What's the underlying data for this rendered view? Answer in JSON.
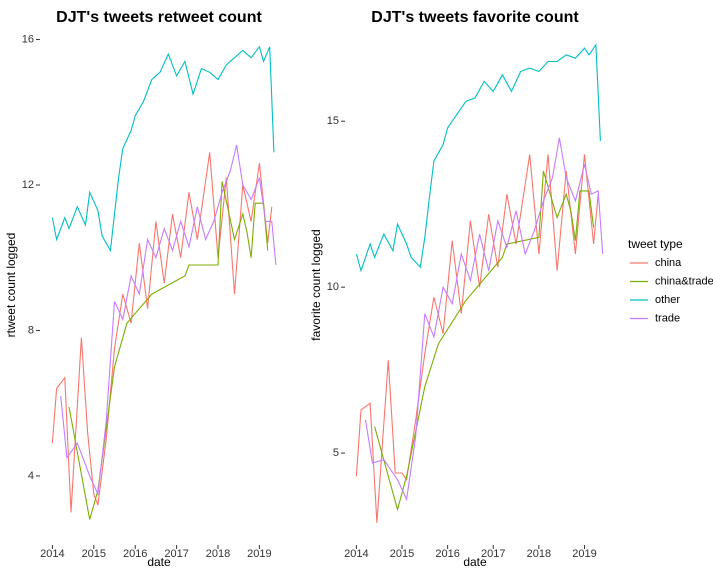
{
  "chart_data": [
    {
      "type": "line",
      "title": "DJT's tweets retweet count",
      "x_label": "date",
      "y_label": "rtweet count logged",
      "xlim": [
        2013.7,
        2019.45
      ],
      "ylim": [
        2.1,
        16.4
      ],
      "xticks": [
        2014,
        2015,
        2016,
        2017,
        2018,
        2019
      ],
      "yticks": [
        4,
        8,
        12,
        16
      ],
      "legend": {
        "title": "tweet type",
        "position": "right"
      },
      "series": [
        {
          "name": "china",
          "color": "#F8766D",
          "x": [
            2014.0,
            2014.1,
            2014.3,
            2014.45,
            2014.7,
            2014.85,
            2015.0,
            2015.1,
            2015.3,
            2015.5,
            2015.7,
            2015.9,
            2016.1,
            2016.3,
            2016.5,
            2016.7,
            2016.9,
            2017.1,
            2017.3,
            2017.5,
            2017.8,
            2018.0,
            2018.2,
            2018.4,
            2018.6,
            2018.8,
            2019.0,
            2019.2,
            2019.3
          ],
          "values": [
            4.9,
            6.4,
            6.7,
            3.0,
            7.8,
            5.2,
            3.5,
            3.2,
            5.0,
            7.5,
            9.0,
            8.2,
            10.4,
            8.6,
            11.0,
            9.3,
            11.2,
            10.0,
            11.8,
            10.5,
            12.9,
            10.0,
            12.2,
            9.0,
            12.0,
            11.0,
            12.6,
            10.4,
            11.4
          ]
        },
        {
          "name": "china&trade",
          "color": "#7CAE00",
          "x": [
            2014.4,
            2014.9,
            2015.1,
            2015.5,
            2015.8,
            2016.4,
            2017.2,
            2017.3,
            2018.0,
            2018.1,
            2018.4,
            2018.6,
            2018.7,
            2018.8,
            2018.9,
            2019.1,
            2019.2
          ],
          "values": [
            5.9,
            2.8,
            3.6,
            7.0,
            8.2,
            9.0,
            9.5,
            9.8,
            9.8,
            12.1,
            10.5,
            11.2,
            10.7,
            10.0,
            11.5,
            11.5,
            10.2
          ]
        },
        {
          "name": "other",
          "color": "#00BFC4",
          "x": [
            2014.0,
            2014.1,
            2014.3,
            2014.4,
            2014.6,
            2014.8,
            2014.9,
            2015.1,
            2015.2,
            2015.4,
            2015.5,
            2015.6,
            2015.7,
            2015.9,
            2016.0,
            2016.2,
            2016.4,
            2016.6,
            2016.8,
            2017.0,
            2017.2,
            2017.4,
            2017.6,
            2017.8,
            2018.0,
            2018.2,
            2018.4,
            2018.6,
            2018.8,
            2019.0,
            2019.1,
            2019.25,
            2019.35
          ],
          "values": [
            11.1,
            10.5,
            11.1,
            10.8,
            11.4,
            10.9,
            11.8,
            11.3,
            10.6,
            10.2,
            11.2,
            12.2,
            13.0,
            13.5,
            13.9,
            14.3,
            14.9,
            15.1,
            15.6,
            15.0,
            15.4,
            14.5,
            15.2,
            15.1,
            14.9,
            15.3,
            15.5,
            15.7,
            15.5,
            15.8,
            15.4,
            15.8,
            12.9
          ]
        },
        {
          "name": "trade",
          "color": "#C77CFF",
          "x": [
            2014.2,
            2014.35,
            2014.6,
            2014.9,
            2015.1,
            2015.3,
            2015.5,
            2015.7,
            2015.9,
            2016.1,
            2016.3,
            2016.5,
            2016.7,
            2016.9,
            2017.1,
            2017.3,
            2017.5,
            2017.7,
            2017.9,
            2018.1,
            2018.3,
            2018.45,
            2018.6,
            2018.8,
            2019.0,
            2019.15,
            2019.3,
            2019.4
          ],
          "values": [
            6.2,
            4.5,
            4.9,
            4.0,
            3.5,
            5.5,
            8.8,
            8.3,
            9.5,
            9.0,
            10.5,
            10.0,
            10.8,
            10.2,
            11.0,
            10.3,
            11.4,
            10.5,
            11.0,
            11.8,
            12.4,
            13.1,
            12.0,
            11.6,
            12.2,
            11.0,
            11.0,
            9.8
          ]
        }
      ]
    },
    {
      "type": "line",
      "title": "DJT's tweets favorite count",
      "x_label": "date",
      "y_label": "favorite count logged",
      "xlim": [
        2013.75,
        2019.45
      ],
      "ylim": [
        2.23,
        17.9
      ],
      "xticks": [
        2014,
        2015,
        2016,
        2017,
        2018,
        2019
      ],
      "yticks": [
        5,
        10,
        15
      ],
      "series": [
        {
          "color": "#F8766D",
          "x": [
            2014.0,
            2014.1,
            2014.3,
            2014.45,
            2014.7,
            2014.85,
            2015.0,
            2015.1,
            2015.3,
            2015.5,
            2015.7,
            2015.9,
            2016.1,
            2016.3,
            2016.5,
            2016.7,
            2016.9,
            2017.1,
            2017.3,
            2017.5,
            2017.8,
            2018.0,
            2018.2,
            2018.4,
            2018.6,
            2018.8,
            2019.0,
            2019.2,
            2019.3
          ],
          "values": [
            4.3,
            6.3,
            6.5,
            2.9,
            7.8,
            4.4,
            4.4,
            4.2,
            6.0,
            8.0,
            9.7,
            8.6,
            11.4,
            9.2,
            12.0,
            10.0,
            12.2,
            10.6,
            12.8,
            11.3,
            14.0,
            11.0,
            14.0,
            10.5,
            13.5,
            11.0,
            14.0,
            11.3,
            12.8
          ]
        },
        {
          "color": "#7CAE00",
          "x": [
            2014.4,
            2014.9,
            2015.1,
            2015.5,
            2015.8,
            2016.4,
            2017.2,
            2017.3,
            2018.0,
            2018.1,
            2018.4,
            2018.6,
            2018.7,
            2018.8,
            2018.9,
            2019.1,
            2019.2
          ],
          "values": [
            5.8,
            3.3,
            4.3,
            7.0,
            8.3,
            9.6,
            10.9,
            11.3,
            11.5,
            13.5,
            12.1,
            12.8,
            12.3,
            11.4,
            12.9,
            12.9,
            11.8
          ]
        },
        {
          "color": "#00BFC4",
          "x": [
            2014.0,
            2014.1,
            2014.3,
            2014.4,
            2014.6,
            2014.8,
            2014.9,
            2015.1,
            2015.2,
            2015.4,
            2015.5,
            2015.6,
            2015.7,
            2015.9,
            2016.0,
            2016.2,
            2016.4,
            2016.6,
            2016.8,
            2017.0,
            2017.2,
            2017.4,
            2017.6,
            2017.8,
            2018.0,
            2018.2,
            2018.4,
            2018.6,
            2018.8,
            2019.0,
            2019.1,
            2019.25,
            2019.35
          ],
          "values": [
            11.0,
            10.5,
            11.3,
            10.9,
            11.6,
            11.1,
            11.9,
            11.3,
            10.9,
            10.6,
            11.5,
            12.7,
            13.8,
            14.3,
            14.8,
            15.2,
            15.6,
            15.7,
            16.2,
            15.9,
            16.4,
            15.9,
            16.5,
            16.6,
            16.5,
            16.8,
            16.8,
            17.0,
            16.9,
            17.2,
            17.0,
            17.3,
            14.4
          ]
        },
        {
          "color": "#C77CFF",
          "x": [
            2014.2,
            2014.35,
            2014.6,
            2014.9,
            2015.1,
            2015.3,
            2015.5,
            2015.7,
            2015.9,
            2016.1,
            2016.3,
            2016.5,
            2016.7,
            2016.9,
            2017.1,
            2017.3,
            2017.5,
            2017.7,
            2017.9,
            2018.1,
            2018.3,
            2018.45,
            2018.6,
            2018.8,
            2019.0,
            2019.15,
            2019.3,
            2019.4
          ],
          "values": [
            6.0,
            4.7,
            4.8,
            4.2,
            3.6,
            5.5,
            9.2,
            8.5,
            10.0,
            9.5,
            11.0,
            10.2,
            11.6,
            10.5,
            12.0,
            11.2,
            12.3,
            11.0,
            11.7,
            12.6,
            13.3,
            14.5,
            13.3,
            12.6,
            13.7,
            12.8,
            12.9,
            11.0
          ]
        }
      ]
    }
  ]
}
